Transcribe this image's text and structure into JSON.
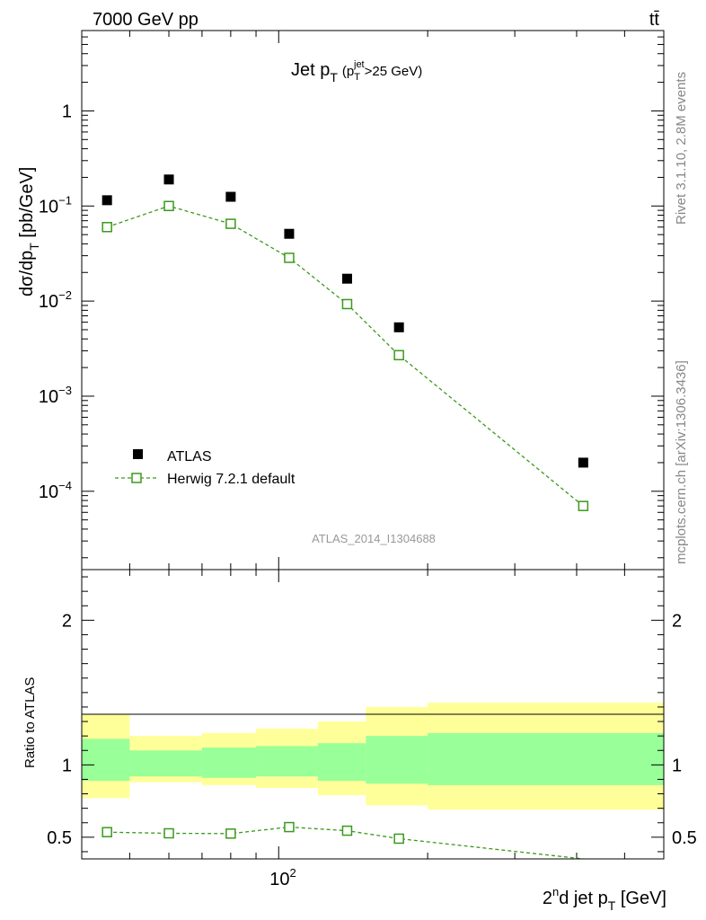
{
  "header": {
    "energy_label": "7000 GeV pp",
    "process_label": "tt̄"
  },
  "side_labels": {
    "rivet": "Rivet 3.1.10,  2.8M events",
    "mcplots": "mcplots.cern.ch [arXiv:1306.3436]"
  },
  "chart_data": [
    {
      "type": "scatter",
      "panel": "main",
      "title_main": "Jet p",
      "title_sub": "T",
      "title_cut": "(p",
      "title_cut_sub": "T",
      "title_cut_sup": "jet",
      "title_cut_tail": ">25 GeV)",
      "ylabel": "dσ/dp",
      "ylabel_sub": "T",
      "ylabel_unit": " [pb/GeV]",
      "yscale": "log",
      "ylim": [
        1.5e-05,
        7
      ],
      "xscale": "log",
      "xlim": [
        40,
        600
      ],
      "watermark": "ATLAS_2014_I1304688",
      "y_tick_labels": [
        "1",
        "10",
        "10",
        "10",
        "10"
      ],
      "y_tick_exponents": [
        "",
        "−1",
        "−2",
        "−3",
        "−4"
      ],
      "series": [
        {
          "name": "ATLAS",
          "marker": "filled-square",
          "color": "#000000",
          "x": [
            45,
            60,
            80,
            105,
            137.5,
            175,
            412.5
          ],
          "y": [
            0.115,
            0.19,
            0.125,
            0.051,
            0.0172,
            0.0053,
            0.0002
          ]
        },
        {
          "name": "Herwig 7.2.1 default",
          "marker": "open-square",
          "line": "dashed",
          "color": "#3a9a1a",
          "x": [
            45,
            60,
            80,
            105,
            137.5,
            175,
            412.5
          ],
          "y": [
            0.06,
            0.1,
            0.065,
            0.0285,
            0.0093,
            0.0027,
            7e-05
          ]
        }
      ]
    },
    {
      "type": "ratio",
      "panel": "ratio",
      "ylabel": "Ratio to ATLAS",
      "ylim": [
        0.35,
        2.35
      ],
      "xscale": "log",
      "xlim": [
        40,
        600
      ],
      "xlabel_pre": "2",
      "xlabel_sup": "n",
      "xlabel_mid": "d jet p",
      "xlabel_sub": "T",
      "xlabel_unit": " [GeV]",
      "x_tick_base": "10",
      "x_tick_exp": "2",
      "y_tick_labels": [
        "0.5",
        "1",
        "2"
      ],
      "y_tick_values": [
        0.5,
        1,
        2
      ],
      "bins": [
        {
          "lo": 40,
          "hi": 50,
          "stat_lo": 0.89,
          "stat_hi": 1.18,
          "tot_lo": 0.77,
          "tot_hi": 1.35
        },
        {
          "lo": 50,
          "hi": 70,
          "stat_lo": 0.92,
          "stat_hi": 1.1,
          "tot_lo": 0.88,
          "tot_hi": 1.2
        },
        {
          "lo": 70,
          "hi": 90,
          "stat_lo": 0.91,
          "stat_hi": 1.12,
          "tot_lo": 0.86,
          "tot_hi": 1.22
        },
        {
          "lo": 90,
          "hi": 120,
          "stat_lo": 0.92,
          "stat_hi": 1.13,
          "tot_lo": 0.84,
          "tot_hi": 1.25
        },
        {
          "lo": 120,
          "hi": 150,
          "stat_lo": 0.89,
          "stat_hi": 1.15,
          "tot_lo": 0.79,
          "tot_hi": 1.3
        },
        {
          "lo": 150,
          "hi": 200,
          "stat_lo": 0.87,
          "stat_hi": 1.2,
          "tot_lo": 0.72,
          "tot_hi": 1.4
        },
        {
          "lo": 200,
          "hi": 625,
          "stat_lo": 0.86,
          "stat_hi": 1.22,
          "tot_lo": 0.69,
          "tot_hi": 1.43
        }
      ],
      "series": [
        {
          "name": "Herwig 7.2.1 default / ATLAS",
          "color": "#3a9a1a",
          "x": [
            45,
            60,
            80,
            105,
            137.5,
            175,
            412.5
          ],
          "y": [
            0.535,
            0.527,
            0.525,
            0.57,
            0.545,
            0.49,
            0.35
          ]
        }
      ]
    }
  ],
  "colors": {
    "band_total": "#ffff99",
    "band_stat": "#99ff99",
    "mc": "#3a9a1a",
    "data": "#000000",
    "side_text": "#888888",
    "watermark": "#999999"
  }
}
